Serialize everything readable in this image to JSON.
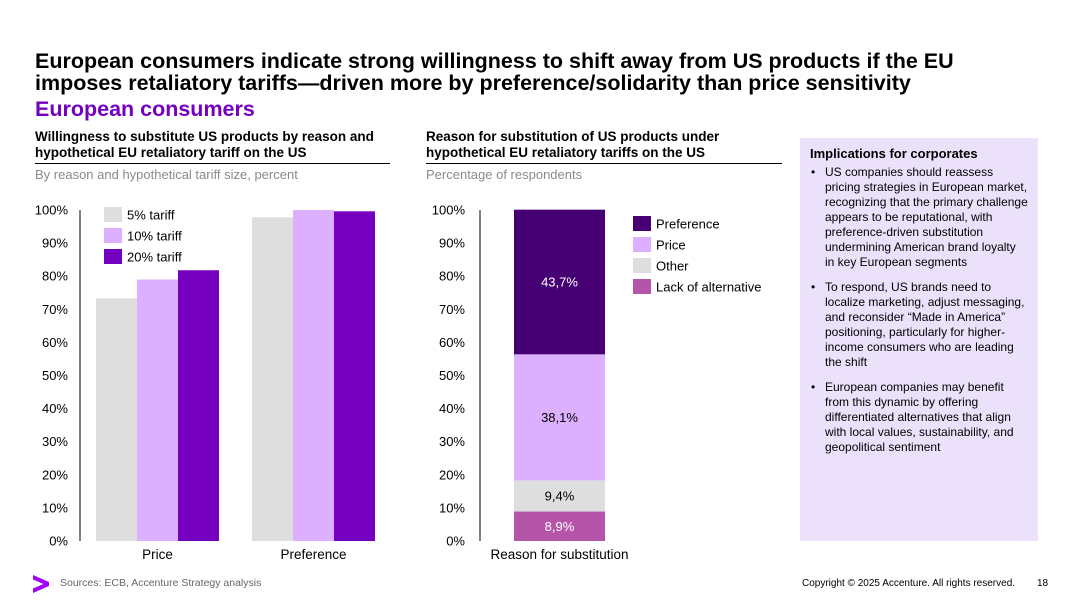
{
  "title": "European consumers indicate strong willingness to shift away from US products if the EU imposes retaliatory tariffs—driven more by preference/solidarity than price sensitivity",
  "subtitle": "European consumers",
  "colors": {
    "accent": "#7500c0",
    "dark_purple": "#460073",
    "light_purple": "#dcafff",
    "gray": "#dedede",
    "magenta": "#b455aa",
    "panel_bg": "#ece1fb"
  },
  "left_panel": {
    "heading": "Willingness to substitute US products by reason and hypothetical EU retaliatory tariff on the US",
    "sub": "By reason and hypothetical tariff size, percent"
  },
  "middle_panel": {
    "heading": "Reason for substitution of US products under hypothetical EU retaliatory tariffs on the US",
    "sub": "Percentage of respondents"
  },
  "implications": {
    "title": "Implications for corporates",
    "bullet_glyph": "•",
    "bullets": [
      "US companies should reassess pricing strategies in European market, recognizing that the primary challenge appears to be reputational, with preference-driven substitution undermining American brand loyalty in key European segments",
      "To respond, US brands need to localize marketing, adjust messaging, and reconsider “Made in America” positioning, particularly for higher-income consumers who are leading the shift",
      "European companies may benefit from this dynamic by offering differentiated alternatives that align with local values, sustainability, and geopolitical sentiment"
    ]
  },
  "footer": {
    "sources": "Sources: ECB, Accenture Strategy analysis",
    "copyright": "Copyright © 2025 Accenture. All rights reserved.",
    "page": "18",
    "logo_icon": "accenture-chevron-icon"
  },
  "chart_data": [
    {
      "type": "bar",
      "categories": [
        "Price",
        "Preference"
      ],
      "series": [
        {
          "name": "5% tariff",
          "color": "#dedede",
          "values": [
            73.3,
            97.8
          ]
        },
        {
          "name": "10% tariff",
          "color": "#dcafff",
          "values": [
            79.0,
            100.0
          ]
        },
        {
          "name": "20% tariff",
          "color": "#7500c0",
          "values": [
            81.8,
            99.6
          ]
        }
      ],
      "ylim": [
        0,
        100
      ],
      "yticks": [
        "0%",
        "10%",
        "20%",
        "30%",
        "40%",
        "50%",
        "60%",
        "70%",
        "80%",
        "90%",
        "100%"
      ],
      "xlabel": "",
      "ylabel": "",
      "legend": "top-left"
    },
    {
      "type": "bar",
      "stacked": true,
      "categories": [
        "Reason for substitution"
      ],
      "series": [
        {
          "name": "Lack of alternative",
          "color": "#b455aa",
          "values": [
            8.9
          ],
          "label": "8,9%"
        },
        {
          "name": "Other",
          "color": "#dedede",
          "values": [
            9.4
          ],
          "label": "9,4%"
        },
        {
          "name": "Price",
          "color": "#dcafff",
          "values": [
            38.1
          ],
          "label": "38,1%"
        },
        {
          "name": "Preference",
          "color": "#460073",
          "values": [
            43.7
          ],
          "label": "43,7%"
        }
      ],
      "legend_order": [
        "Preference",
        "Price",
        "Other",
        "Lack of alternative"
      ],
      "ylim": [
        0,
        100
      ],
      "yticks": [
        "0%",
        "10%",
        "20%",
        "30%",
        "40%",
        "50%",
        "60%",
        "70%",
        "80%",
        "90%",
        "100%"
      ],
      "legend": "right"
    }
  ]
}
